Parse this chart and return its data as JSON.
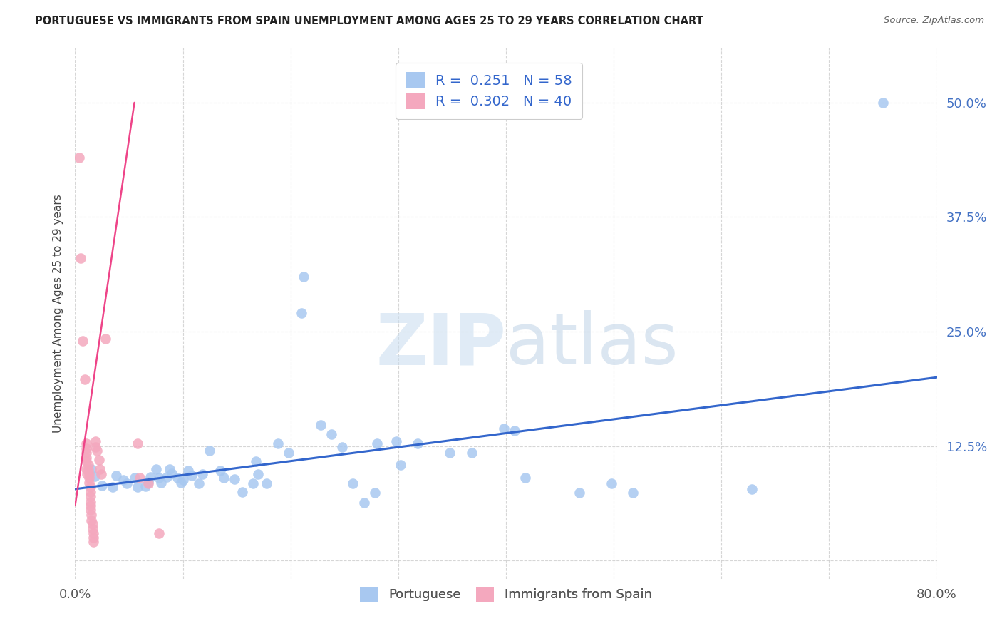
{
  "title": "PORTUGUESE VS IMMIGRANTS FROM SPAIN UNEMPLOYMENT AMONG AGES 25 TO 29 YEARS CORRELATION CHART",
  "source": "Source: ZipAtlas.com",
  "ylabel": "Unemployment Among Ages 25 to 29 years",
  "xlim": [
    0,
    0.8
  ],
  "ylim": [
    -0.02,
    0.56
  ],
  "xticks": [
    0.0,
    0.1,
    0.2,
    0.3,
    0.4,
    0.5,
    0.6,
    0.7,
    0.8
  ],
  "xticklabels": [
    "0.0%",
    "",
    "",
    "",
    "",
    "",
    "",
    "",
    "80.0%"
  ],
  "ytick_positions": [
    0.0,
    0.125,
    0.25,
    0.375,
    0.5
  ],
  "yticklabels": [
    "",
    "12.5%",
    "25.0%",
    "37.5%",
    "50.0%"
  ],
  "blue_R": 0.251,
  "blue_N": 58,
  "pink_R": 0.302,
  "pink_N": 40,
  "watermark_zip": "ZIP",
  "watermark_atlas": "atlas",
  "blue_color": "#A8C8F0",
  "pink_color": "#F4A8BE",
  "blue_line_color": "#3366CC",
  "pink_line_color": "#EE4488",
  "tick_color": "#4472C4",
  "blue_scatter": [
    [
      0.015,
      0.1
    ],
    [
      0.018,
      0.092
    ],
    [
      0.025,
      0.082
    ],
    [
      0.035,
      0.08
    ],
    [
      0.038,
      0.093
    ],
    [
      0.045,
      0.088
    ],
    [
      0.048,
      0.084
    ],
    [
      0.055,
      0.09
    ],
    [
      0.058,
      0.08
    ],
    [
      0.065,
      0.081
    ],
    [
      0.068,
      0.086
    ],
    [
      0.07,
      0.091
    ],
    [
      0.075,
      0.1
    ],
    [
      0.078,
      0.09
    ],
    [
      0.08,
      0.085
    ],
    [
      0.085,
      0.091
    ],
    [
      0.088,
      0.1
    ],
    [
      0.09,
      0.095
    ],
    [
      0.095,
      0.09
    ],
    [
      0.098,
      0.085
    ],
    [
      0.1,
      0.088
    ],
    [
      0.105,
      0.098
    ],
    [
      0.108,
      0.093
    ],
    [
      0.115,
      0.084
    ],
    [
      0.118,
      0.094
    ],
    [
      0.125,
      0.12
    ],
    [
      0.135,
      0.098
    ],
    [
      0.138,
      0.09
    ],
    [
      0.148,
      0.089
    ],
    [
      0.155,
      0.075
    ],
    [
      0.165,
      0.084
    ],
    [
      0.168,
      0.108
    ],
    [
      0.17,
      0.094
    ],
    [
      0.178,
      0.084
    ],
    [
      0.188,
      0.128
    ],
    [
      0.198,
      0.118
    ],
    [
      0.21,
      0.27
    ],
    [
      0.212,
      0.31
    ],
    [
      0.228,
      0.148
    ],
    [
      0.238,
      0.138
    ],
    [
      0.248,
      0.124
    ],
    [
      0.258,
      0.084
    ],
    [
      0.268,
      0.063
    ],
    [
      0.278,
      0.074
    ],
    [
      0.28,
      0.128
    ],
    [
      0.298,
      0.13
    ],
    [
      0.302,
      0.104
    ],
    [
      0.318,
      0.128
    ],
    [
      0.348,
      0.118
    ],
    [
      0.368,
      0.118
    ],
    [
      0.398,
      0.144
    ],
    [
      0.408,
      0.142
    ],
    [
      0.418,
      0.09
    ],
    [
      0.468,
      0.074
    ],
    [
      0.498,
      0.084
    ],
    [
      0.518,
      0.074
    ],
    [
      0.628,
      0.078
    ],
    [
      0.75,
      0.5
    ]
  ],
  "pink_scatter": [
    [
      0.004,
      0.44
    ],
    [
      0.005,
      0.33
    ],
    [
      0.007,
      0.24
    ],
    [
      0.009,
      0.198
    ],
    [
      0.01,
      0.128
    ],
    [
      0.01,
      0.122
    ],
    [
      0.01,
      0.118
    ],
    [
      0.01,
      0.112
    ],
    [
      0.01,
      0.108
    ],
    [
      0.01,
      0.1
    ],
    [
      0.011,
      0.094
    ],
    [
      0.012,
      0.099
    ],
    [
      0.012,
      0.104
    ],
    [
      0.013,
      0.094
    ],
    [
      0.013,
      0.09
    ],
    [
      0.013,
      0.085
    ],
    [
      0.014,
      0.08
    ],
    [
      0.014,
      0.075
    ],
    [
      0.014,
      0.07
    ],
    [
      0.014,
      0.064
    ],
    [
      0.014,
      0.06
    ],
    [
      0.014,
      0.055
    ],
    [
      0.015,
      0.05
    ],
    [
      0.015,
      0.044
    ],
    [
      0.016,
      0.04
    ],
    [
      0.016,
      0.034
    ],
    [
      0.017,
      0.03
    ],
    [
      0.017,
      0.025
    ],
    [
      0.017,
      0.02
    ],
    [
      0.019,
      0.13
    ],
    [
      0.019,
      0.124
    ],
    [
      0.02,
      0.12
    ],
    [
      0.022,
      0.11
    ],
    [
      0.023,
      0.1
    ],
    [
      0.024,
      0.094
    ],
    [
      0.028,
      0.242
    ],
    [
      0.058,
      0.128
    ],
    [
      0.06,
      0.09
    ],
    [
      0.068,
      0.084
    ],
    [
      0.078,
      0.03
    ]
  ],
  "blue_trendline_x": [
    0.0,
    0.8
  ],
  "blue_trendline_y": [
    0.078,
    0.2
  ],
  "pink_trendline_x": [
    0.0,
    0.055
  ],
  "pink_trendline_y": [
    0.06,
    0.5
  ]
}
